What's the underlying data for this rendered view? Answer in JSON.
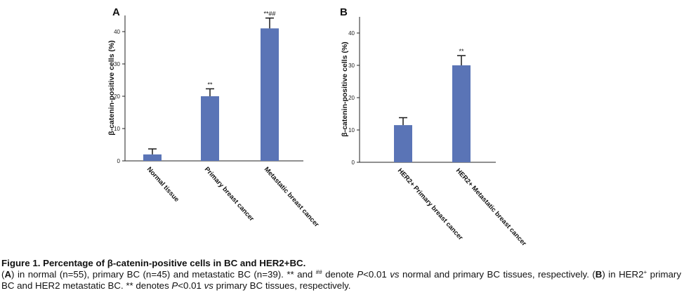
{
  "chart_data": [
    {
      "type": "bar",
      "panel_label": "A",
      "ylabel": "β-catenin-positive cells (%)",
      "ylim": [
        0,
        45
      ],
      "yticks": [
        0,
        10,
        20,
        30,
        40
      ],
      "categories": [
        "Normal tissue",
        "Primary breast cancer",
        "Metastatic breast cancer"
      ],
      "values": [
        2,
        20,
        41
      ],
      "errors": [
        1.7,
        2.3,
        3.2
      ],
      "annotations": [
        "",
        "**",
        "**##"
      ],
      "bar_color": "#5a74b6"
    },
    {
      "type": "bar",
      "panel_label": "B",
      "ylabel": "β-catenin-positive cells (%)",
      "ylim": [
        0,
        45
      ],
      "yticks": [
        0,
        10,
        20,
        30,
        40
      ],
      "categories": [
        "HER2+ Primary breast cancer",
        "HER2+  Metastatic breast cancer"
      ],
      "values": [
        11.5,
        30
      ],
      "errors": [
        2.3,
        3
      ],
      "annotations": [
        "",
        "**"
      ],
      "bar_color": "#5a74b6"
    }
  ],
  "caption": {
    "title": "Figure 1. Percentage of β-catenin-positive cells in BC and HER2+BC.",
    "a_label": "A",
    "a_text": " in normal (n=55), primary BC (n=45) and metastatic BC (n=39). ** and ",
    "hash_sup": "##",
    "denote": " denote ",
    "p_italic": "P",
    "p_value": "<0.01 ",
    "vs_italic": "vs",
    "a_tail": " normal and primary BC tissues, respectively. (",
    "b_label": "B",
    "b_text_1": ") in HER2",
    "plus_sup": "+",
    "b_text_2": " primary BC and HER2 metastatic BC. ** denotes ",
    "b_p_italic": "P",
    "b_p_value": "<0.01 ",
    "b_vs_italic": "vs",
    "b_tail": " primary BC tissues, respectively."
  }
}
